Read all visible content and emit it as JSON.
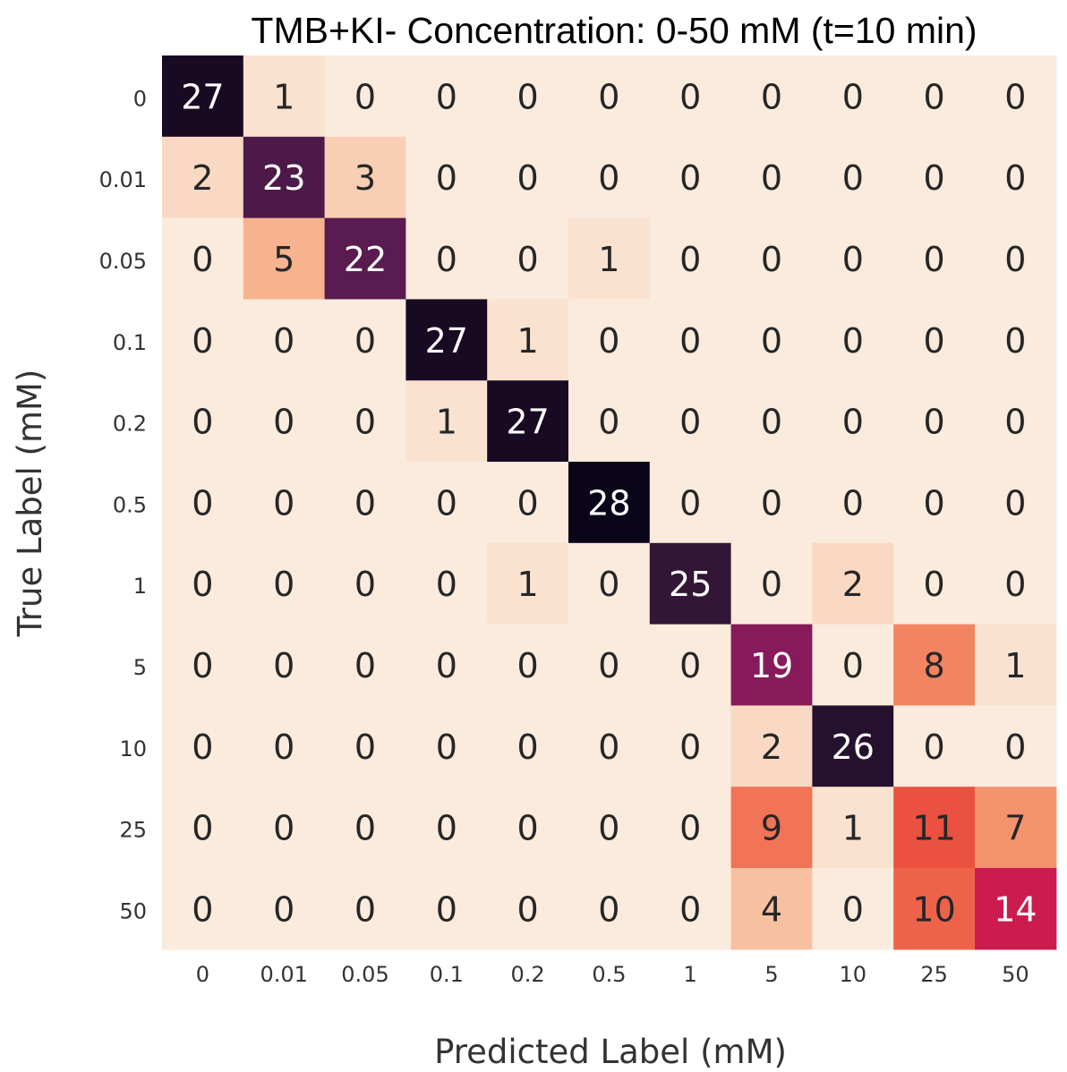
{
  "chart_data": {
    "type": "heatmap",
    "title": "TMB+KI- Concentration: 0-50 mM (t=10 min)",
    "xlabel": "Predicted Label (mM)",
    "ylabel": "True Label (mM)",
    "x_categories": [
      "0",
      "0.01",
      "0.05",
      "0.1",
      "0.2",
      "0.5",
      "1",
      "5",
      "10",
      "25",
      "50"
    ],
    "y_categories": [
      "0",
      "0.01",
      "0.05",
      "0.1",
      "0.2",
      "0.5",
      "1",
      "5",
      "10",
      "25",
      "50"
    ],
    "values": [
      [
        27,
        1,
        0,
        0,
        0,
        0,
        0,
        0,
        0,
        0,
        0
      ],
      [
        2,
        23,
        3,
        0,
        0,
        0,
        0,
        0,
        0,
        0,
        0
      ],
      [
        0,
        5,
        22,
        0,
        0,
        1,
        0,
        0,
        0,
        0,
        0
      ],
      [
        0,
        0,
        0,
        27,
        1,
        0,
        0,
        0,
        0,
        0,
        0
      ],
      [
        0,
        0,
        0,
        1,
        27,
        0,
        0,
        0,
        0,
        0,
        0
      ],
      [
        0,
        0,
        0,
        0,
        0,
        28,
        0,
        0,
        0,
        0,
        0
      ],
      [
        0,
        0,
        0,
        0,
        1,
        0,
        25,
        0,
        2,
        0,
        0
      ],
      [
        0,
        0,
        0,
        0,
        0,
        0,
        0,
        19,
        0,
        8,
        1
      ],
      [
        0,
        0,
        0,
        0,
        0,
        0,
        0,
        2,
        26,
        0,
        0
      ],
      [
        0,
        0,
        0,
        0,
        0,
        0,
        0,
        9,
        1,
        11,
        7
      ],
      [
        0,
        0,
        0,
        0,
        0,
        0,
        0,
        4,
        0,
        10,
        14
      ]
    ],
    "value_range": [
      0,
      28
    ],
    "colormap": "rocket_r",
    "grid": false,
    "legend": "none"
  }
}
